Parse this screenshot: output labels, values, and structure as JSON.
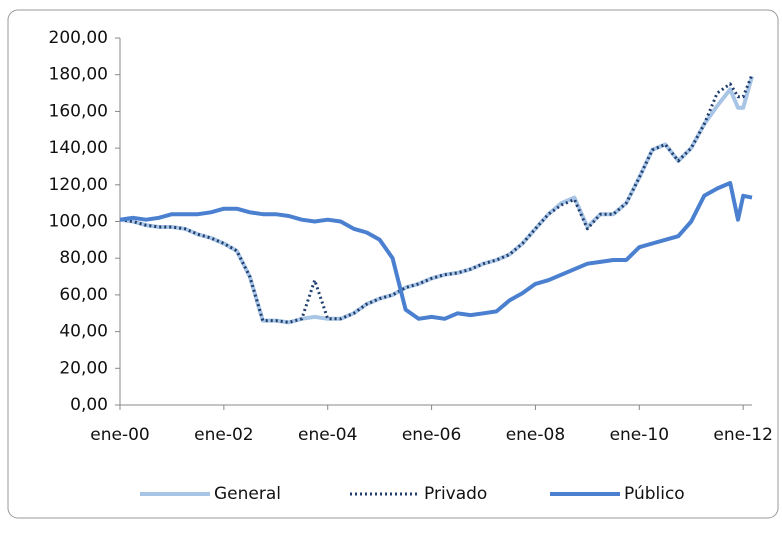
{
  "chart_data": {
    "type": "line",
    "x": [
      0,
      0.25,
      0.5,
      0.75,
      1,
      1.25,
      1.5,
      1.75,
      2,
      2.25,
      2.5,
      2.75,
      3,
      3.25,
      3.5,
      3.75,
      4,
      4.25,
      4.5,
      4.75,
      5,
      5.25,
      5.5,
      5.75,
      6,
      6.25,
      6.5,
      6.75,
      7,
      7.25,
      7.5,
      7.75,
      8,
      8.25,
      8.5,
      8.75,
      9,
      9.25,
      9.5,
      9.75,
      10,
      10.25,
      10.5,
      10.75,
      11,
      11.25,
      11.5,
      11.75,
      11.9,
      12,
      12.17
    ],
    "series": [
      {
        "name": "General",
        "color": "#a9c5e6",
        "style": "solid",
        "width": 4,
        "values": [
          101,
          100,
          98,
          97,
          97,
          96,
          93,
          91,
          88,
          84,
          70,
          46,
          46,
          45,
          47,
          48,
          47,
          47,
          50,
          55,
          58,
          60,
          64,
          66,
          69,
          71,
          72,
          74,
          77,
          79,
          82,
          88,
          96,
          104,
          110,
          113,
          97,
          104,
          104,
          110,
          124,
          139,
          142,
          133,
          140,
          153,
          163,
          172,
          162,
          162,
          179
        ]
      },
      {
        "name": "Privado",
        "color": "#1f3e6e",
        "style": "dotted",
        "width": 3,
        "values": [
          101,
          100,
          98,
          97,
          97,
          96,
          93,
          91,
          88,
          84,
          70,
          46,
          46,
          45,
          47,
          68,
          47,
          47,
          50,
          55,
          58,
          60,
          64,
          66,
          69,
          71,
          72,
          74,
          77,
          79,
          82,
          88,
          96,
          104,
          109,
          112,
          96,
          104,
          104,
          110,
          124,
          139,
          142,
          133,
          140,
          153,
          170,
          175,
          168,
          168,
          180
        ]
      },
      {
        "name": "Público",
        "color": "#4a80cf",
        "style": "solid",
        "width": 4,
        "values": [
          101,
          102,
          101,
          102,
          104,
          104,
          104,
          105,
          107,
          107,
          105,
          104,
          104,
          103,
          101,
          100,
          101,
          100,
          96,
          94,
          90,
          80,
          52,
          47,
          48,
          47,
          50,
          49,
          50,
          51,
          57,
          61,
          66,
          68,
          71,
          74,
          77,
          78,
          79,
          79,
          86,
          88,
          90,
          92,
          100,
          114,
          118,
          121,
          101,
          114,
          113
        ]
      }
    ],
    "xlim": [
      0,
      12.17
    ],
    "xticks": [
      {
        "value": 0,
        "label": "ene-00"
      },
      {
        "value": 2,
        "label": "ene-02"
      },
      {
        "value": 4,
        "label": "ene-04"
      },
      {
        "value": 6,
        "label": "ene-06"
      },
      {
        "value": 8,
        "label": "ene-08"
      },
      {
        "value": 10,
        "label": "ene-10"
      },
      {
        "value": 12,
        "label": "ene-12"
      }
    ],
    "ylim": [
      0,
      200
    ],
    "yticks": [
      {
        "value": 0,
        "label": "0,00"
      },
      {
        "value": 20,
        "label": "20,00"
      },
      {
        "value": 40,
        "label": "40,00"
      },
      {
        "value": 60,
        "label": "60,00"
      },
      {
        "value": 80,
        "label": "80,00"
      },
      {
        "value": 100,
        "label": "100,00"
      },
      {
        "value": 120,
        "label": "120,00"
      },
      {
        "value": 140,
        "label": "140,00"
      },
      {
        "value": 160,
        "label": "160,00"
      },
      {
        "value": 180,
        "label": "180,00"
      },
      {
        "value": 200,
        "label": "200,00"
      }
    ],
    "legend": "bottom"
  }
}
